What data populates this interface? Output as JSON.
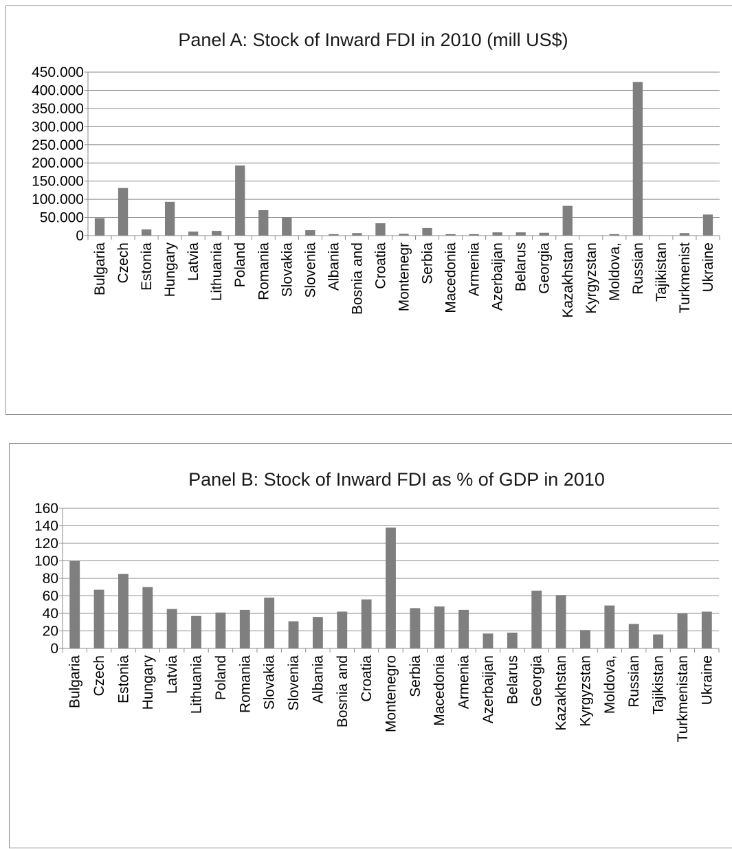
{
  "chart_data": [
    {
      "type": "bar",
      "title": "Panel A: Stock of Inward FDI in 2010 (mill US$)",
      "xlabel": "",
      "ylabel": "",
      "ylim": [
        0,
        450000
      ],
      "yticks": [
        0,
        50000,
        100000,
        150000,
        200000,
        250000,
        300000,
        350000,
        400000,
        450000
      ],
      "ytick_labels": [
        "0",
        "50.000",
        "100.000",
        "150.000",
        "200.000",
        "250.000",
        "300.000",
        "350.000",
        "400.000",
        "450.000"
      ],
      "grid": true,
      "bar_color": "#7f7f7f",
      "categories": [
        "Bulgaria",
        "Czech",
        "Estonia",
        "Hungary",
        "Latvia",
        "Lithuania",
        "Poland",
        "Romania",
        "Slovakia",
        "Slovenia",
        "Albania",
        "Bosnia and",
        "Croatia",
        "Montenegr",
        "Serbia",
        "Macedonia",
        "Armenia",
        "Azerbaijan",
        "Belarus",
        "Georgia",
        "Kazakhstan",
        "Kyrgyzstan",
        "Moldova,",
        "Russian",
        "Tajikistan",
        "Turkmenist",
        "Ukraine"
      ],
      "values": [
        48000,
        131000,
        17000,
        93000,
        11000,
        13000,
        193000,
        70000,
        51000,
        15000,
        4000,
        7000,
        34000,
        5000,
        21000,
        4000,
        4000,
        9000,
        9000,
        8000,
        82000,
        1000,
        4000,
        423000,
        1000,
        7000,
        58000
      ]
    },
    {
      "type": "bar",
      "title": "Panel B: Stock of Inward FDI as % of GDP  in 2010",
      "xlabel": "",
      "ylabel": "",
      "ylim": [
        0,
        160
      ],
      "yticks": [
        0,
        20,
        40,
        60,
        80,
        100,
        120,
        140,
        160
      ],
      "ytick_labels": [
        "0",
        "20",
        "40",
        "60",
        "80",
        "100",
        "120",
        "140",
        "160"
      ],
      "grid": true,
      "bar_color": "#7f7f7f",
      "categories": [
        "Bulgaria",
        "Czech",
        "Estonia",
        "Hungary",
        "Latvia",
        "Lithuania",
        "Poland",
        "Romania",
        "Slovakia",
        "Slovenia",
        "Albania",
        "Bosnia and",
        "Croatia",
        "Montenegro",
        "Serbia",
        "Macedonia",
        "Armenia",
        "Azerbaijan",
        "Belarus",
        "Georgia",
        "Kazakhstan",
        "Kyrgyzstan",
        "Moldova,",
        "Russian",
        "Tajikistan",
        "Turkmenistan",
        "Ukraine"
      ],
      "values": [
        100,
        67,
        85,
        70,
        45,
        37,
        41,
        44,
        58,
        31,
        36,
        42,
        56,
        138,
        46,
        48,
        44,
        17,
        18,
        66,
        61,
        21,
        49,
        28,
        16,
        40,
        42
      ]
    }
  ]
}
